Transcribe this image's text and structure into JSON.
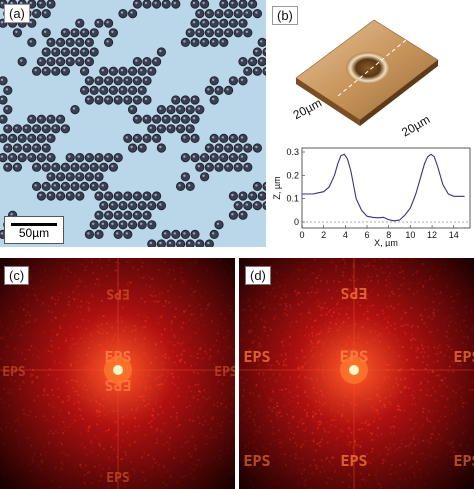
{
  "panels": {
    "a": {
      "label": "(a)",
      "scale_bar": "50µm"
    },
    "b": {
      "label": "(b)",
      "dim_left": "20µm",
      "dim_right": "20µm",
      "profile_chart": {
        "type": "line",
        "xlabel": "X, µm",
        "ylabel": "Z, µm",
        "xlim": [
          0,
          15.5
        ],
        "ylim": [
          0,
          0.3
        ],
        "xticks": [
          "0",
          "2",
          "4",
          "6",
          "8",
          "10",
          "12",
          "14"
        ],
        "yticks": [
          "0",
          "0.1",
          "0.2",
          "0.3"
        ],
        "color": "#3b2d8f",
        "x": [
          0,
          0.5,
          1,
          1.5,
          2,
          2.5,
          3,
          3.3,
          3.6,
          3.9,
          4.2,
          4.5,
          5,
          5.5,
          6,
          6.5,
          7,
          7.5,
          8,
          8.5,
          9,
          9.5,
          10,
          10.5,
          11,
          11.3,
          11.6,
          11.9,
          12.2,
          12.5,
          13,
          13.5,
          14,
          14.5,
          15
        ],
        "y": [
          0.12,
          0.12,
          0.12,
          0.125,
          0.13,
          0.15,
          0.2,
          0.25,
          0.285,
          0.29,
          0.27,
          0.22,
          0.1,
          0.05,
          0.025,
          0.02,
          0.018,
          0.02,
          0.01,
          0.005,
          0.008,
          0.03,
          0.06,
          0.12,
          0.2,
          0.25,
          0.28,
          0.29,
          0.28,
          0.24,
          0.16,
          0.12,
          0.11,
          0.11,
          0.11
        ]
      }
    },
    "c": {
      "label": "(c)",
      "pattern_text": "EPS"
    },
    "d": {
      "label": "(d)",
      "pattern_text": "EPS"
    }
  }
}
